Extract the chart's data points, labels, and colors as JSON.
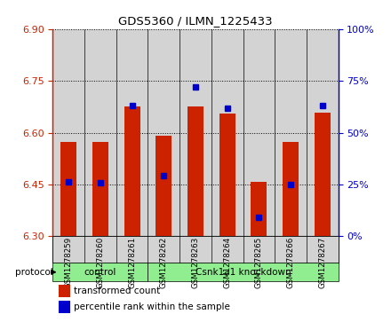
{
  "title": "GDS5360 / ILMN_1225433",
  "samples": [
    "GSM1278259",
    "GSM1278260",
    "GSM1278261",
    "GSM1278262",
    "GSM1278263",
    "GSM1278264",
    "GSM1278265",
    "GSM1278266",
    "GSM1278267"
  ],
  "bar_tops": [
    6.572,
    6.572,
    6.675,
    6.592,
    6.675,
    6.655,
    6.458,
    6.572,
    6.658
  ],
  "bar_base": 6.3,
  "blue_marker_values": [
    6.458,
    6.455,
    6.678,
    6.475,
    6.732,
    6.672,
    6.355,
    6.45,
    6.678
  ],
  "ylim_left": [
    6.3,
    6.9
  ],
  "ylim_right": [
    0,
    100
  ],
  "yticks_left": [
    6.3,
    6.45,
    6.6,
    6.75,
    6.9
  ],
  "yticks_right": [
    0,
    25,
    50,
    75,
    100
  ],
  "bar_color": "#CC2200",
  "marker_color": "#0000CC",
  "protocol_groups": [
    {
      "label": "control",
      "start": 0,
      "end": 3
    },
    {
      "label": "Csnk1a1 knockdown",
      "start": 3,
      "end": 9
    }
  ],
  "protocol_label": "protocol",
  "legend_bar_label": "transformed count",
  "legend_marker_label": "percentile rank within the sample",
  "tick_area_color": "#D3D3D3",
  "green_color": "#90EE90",
  "background_color": "#FFFFFF"
}
